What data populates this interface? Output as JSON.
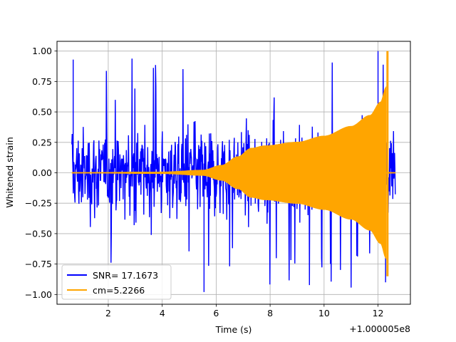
{
  "chart_data": {
    "type": "line",
    "title": "",
    "xlabel": "Time (s)",
    "ylabel": "Whitened strain",
    "x_offset_label": "+1.000005e8",
    "xlim": [
      0.1,
      13.2
    ],
    "ylim": [
      -1.08,
      1.08
    ],
    "xticks": [
      2,
      4,
      6,
      8,
      10,
      12
    ],
    "xtick_labels": [
      "2",
      "4",
      "6",
      "8",
      "10",
      "12"
    ],
    "yticks": [
      -1.0,
      -0.75,
      -0.5,
      -0.25,
      0.0,
      0.25,
      0.5,
      0.75,
      1.0
    ],
    "ytick_labels": [
      "−1.00",
      "−0.75",
      "−0.50",
      "−0.25",
      "0.00",
      "0.25",
      "0.50",
      "0.75",
      "1.00"
    ],
    "grid": true,
    "legend_position": "lower-left",
    "series": [
      {
        "name": "SNR= 17.1673",
        "color": "#0000ff",
        "kind": "whitened-data-noise",
        "x_range": [
          0.65,
          12.65
        ],
        "typical_amplitude": 0.45,
        "peak_amplitude": 1.0,
        "min_value": -0.98
      },
      {
        "name": "cm=5.2266",
        "color": "#ffa500",
        "kind": "template-chirp",
        "x_range": [
          0.65,
          12.65
        ],
        "envelope": [
          {
            "x": 0.65,
            "y": 0.0
          },
          {
            "x": 4.0,
            "y": 0.005
          },
          {
            "x": 5.5,
            "y": 0.02
          },
          {
            "x": 6.2,
            "y": 0.06
          },
          {
            "x": 6.8,
            "y": 0.13
          },
          {
            "x": 7.3,
            "y": 0.2
          },
          {
            "x": 7.8,
            "y": 0.22
          },
          {
            "x": 9.0,
            "y": 0.25
          },
          {
            "x": 10.0,
            "y": 0.3
          },
          {
            "x": 11.0,
            "y": 0.38
          },
          {
            "x": 11.7,
            "y": 0.47
          },
          {
            "x": 12.1,
            "y": 0.58
          },
          {
            "x": 12.3,
            "y": 0.7
          }
        ],
        "merger_x": 12.35,
        "merger_peak": 1.0,
        "merger_trough": -0.85,
        "post_merger_value": 0.0
      }
    ]
  }
}
